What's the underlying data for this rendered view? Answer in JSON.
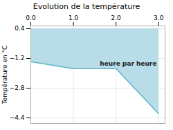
{
  "chart_data": {
    "type": "line",
    "title": "Evolution de la température",
    "ylabel": "Température en °C",
    "x": [
      0,
      1,
      2,
      3
    ],
    "series": [
      {
        "type": "area",
        "color": "#b8dde8",
        "values": [
          -1.38,
          -1.75,
          -1.75,
          -4.18
        ],
        "area_top": 0.4
      },
      {
        "type": "line",
        "color": "#5ab4c8",
        "values": [
          -1.38,
          -1.75,
          -1.75,
          -4.18
        ]
      }
    ],
    "xlim": [
      0,
      3.15
    ],
    "xticks": [
      0,
      1,
      2,
      3
    ],
    "ylim": [
      -4.7,
      0.55
    ],
    "yticks": [
      0.4,
      -1.2,
      -2.8,
      -4.4
    ],
    "grid": true,
    "annotations": [
      {
        "text": "heure par heure",
        "x": 1.62,
        "y": -1.35
      }
    ]
  }
}
